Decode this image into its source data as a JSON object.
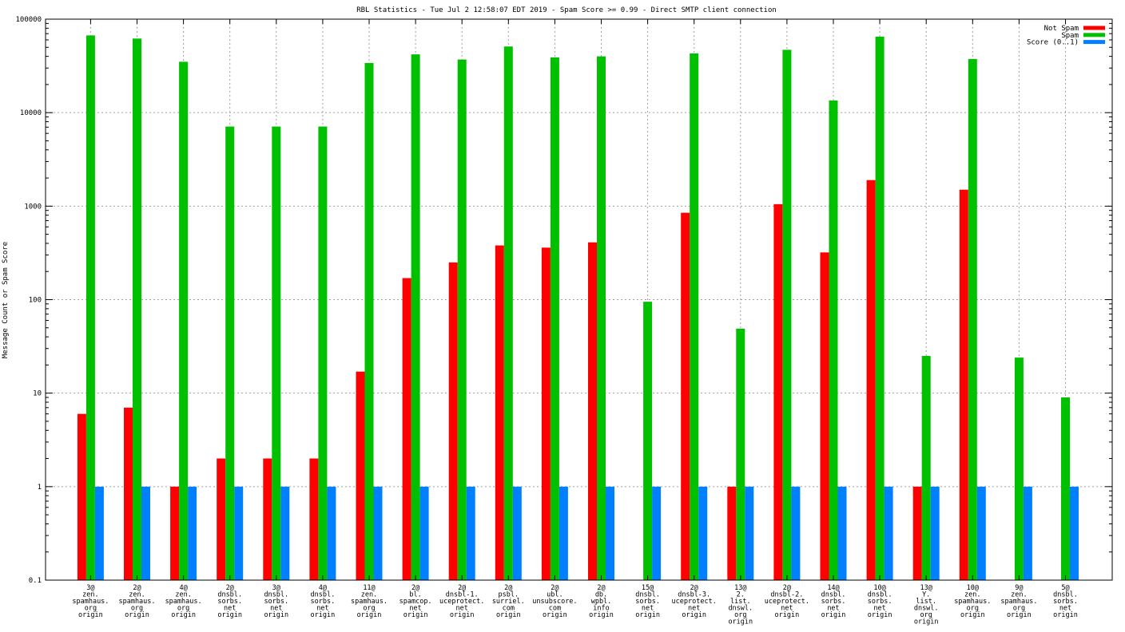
{
  "chart_data": {
    "type": "bar",
    "title": "RBL Statistics - Tue Jul  2 12:58:07 EDT 2019 - Spam Score >= 0.99 - Direct SMTP client connection",
    "xlabel": "",
    "ylabel": "Message Count or Spam Score",
    "yscale": "log",
    "ylim": [
      0.1,
      100000
    ],
    "y_ticks": [
      "0.1",
      "1",
      "10",
      "100",
      "1000",
      "10000",
      "100000"
    ],
    "grid": true,
    "legend_position": "top-right",
    "categories": [
      [
        "3@",
        "zen.",
        "spamhaus.",
        "org",
        "origin"
      ],
      [
        "2@",
        "zen.",
        "spamhaus.",
        "org",
        "origin"
      ],
      [
        "4@",
        "zen.",
        "spamhaus.",
        "org",
        "origin"
      ],
      [
        "2@",
        "dnsbl.",
        "sorbs.",
        "net",
        "origin"
      ],
      [
        "3@",
        "dnsbl.",
        "sorbs.",
        "net",
        "origin"
      ],
      [
        "4@",
        "dnsbl.",
        "sorbs.",
        "net",
        "origin"
      ],
      [
        "11@",
        "zen.",
        "spamhaus.",
        "org",
        "origin"
      ],
      [
        "2@",
        "bl.",
        "spamcop.",
        "net",
        "origin"
      ],
      [
        "2@",
        "dnsbl-1.",
        "uceprotect.",
        "net",
        "origin"
      ],
      [
        "2@",
        "psbl.",
        "surriel.",
        "com",
        "origin"
      ],
      [
        "2@",
        "ubl.",
        "unsubscore.",
        "com",
        "origin"
      ],
      [
        "2@",
        "db.",
        "wpbl.",
        "info",
        "origin"
      ],
      [
        "15@",
        "dnsbl.",
        "sorbs.",
        "net",
        "origin"
      ],
      [
        "2@",
        "dnsbl-3.",
        "uceprotect.",
        "net",
        "origin"
      ],
      [
        "13@",
        "2.",
        "list.",
        "dnswl.",
        "org",
        "origin"
      ],
      [
        "2@",
        "dnsbl-2.",
        "uceprotect.",
        "net",
        "origin"
      ],
      [
        "14@",
        "dnsbl.",
        "sorbs.",
        "net",
        "origin"
      ],
      [
        "10@",
        "dnsbl.",
        "sorbs.",
        "net",
        "origin"
      ],
      [
        "13@",
        "Y.",
        "list.",
        "dnswl.",
        "org",
        "origin"
      ],
      [
        "10@",
        "zen.",
        "spamhaus.",
        "org",
        "origin"
      ],
      [
        "9@",
        "zen.",
        "spamhaus.",
        "org",
        "origin"
      ],
      [
        "5@",
        "dnsbl.",
        "sorbs.",
        "net",
        "origin"
      ]
    ],
    "series": [
      {
        "name": "Not Spam",
        "color": "#ff0000",
        "values": [
          6,
          7,
          1,
          2,
          2,
          2,
          17,
          170,
          250,
          380,
          360,
          410,
          null,
          850,
          1,
          1050,
          320,
          1900,
          1,
          1500,
          null,
          null
        ]
      },
      {
        "name": "Spam",
        "color": "#00c000",
        "values": [
          67000,
          62000,
          35000,
          7100,
          7100,
          7100,
          34000,
          42000,
          37000,
          51000,
          39000,
          40000,
          95,
          43000,
          49,
          47000,
          13500,
          65000,
          25,
          37500,
          24,
          9
        ]
      },
      {
        "name": "Score (0..1)",
        "color": "#0080ff",
        "values": [
          1,
          1,
          1,
          1,
          1,
          1,
          1,
          1,
          1,
          1,
          1,
          1,
          1,
          1,
          1,
          1,
          1,
          1,
          1,
          1,
          1,
          1
        ]
      }
    ]
  }
}
